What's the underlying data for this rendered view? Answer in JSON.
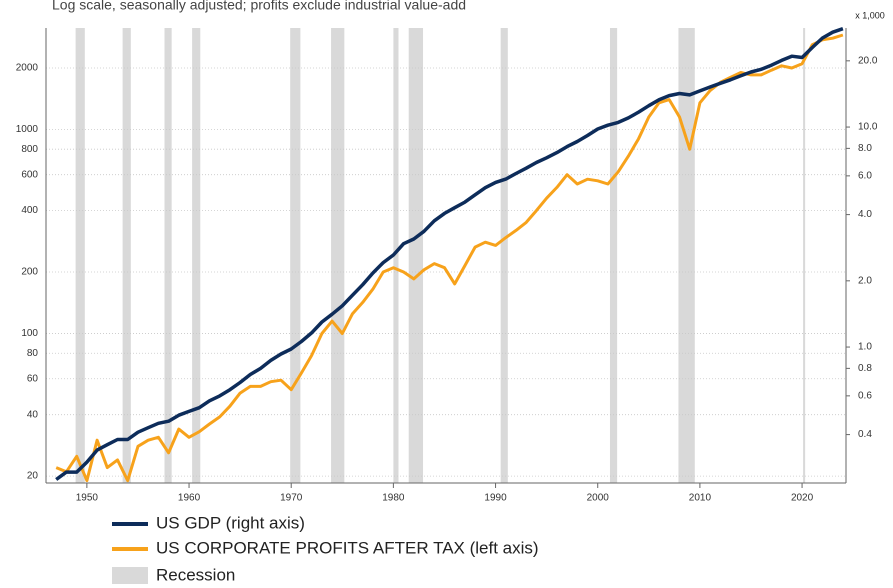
{
  "chart_data": {
    "type": "line",
    "subtitle": "Log scale, seasonally adjusted; profits exclude industrial value-add",
    "y2_unit_label": "x 1,000",
    "log_scale": true,
    "grid": true,
    "xlim": [
      1946,
      2024.3
    ],
    "xticks": [
      1950,
      1960,
      1970,
      1980,
      1990,
      2000,
      2010,
      2020
    ],
    "ylim": [
      18.5,
      3140
    ],
    "yticks": [
      20,
      40,
      60,
      80,
      100,
      200,
      400,
      600,
      800,
      1000,
      2000
    ],
    "y2lim": [
      0.241,
      28.2
    ],
    "y2ticks": [
      {
        "value": 0.4,
        "label": "0.4"
      },
      {
        "value": 0.6,
        "label": "0.6"
      },
      {
        "value": 0.8,
        "label": "0.8"
      },
      {
        "value": 1,
        "label": "1.0"
      },
      {
        "value": 2,
        "label": "2.0"
      },
      {
        "value": 4,
        "label": "4.0"
      },
      {
        "value": 6,
        "label": "6.0"
      },
      {
        "value": 8,
        "label": "8.0"
      },
      {
        "value": 10,
        "label": "10.0"
      },
      {
        "value": 20,
        "label": "20.0"
      }
    ],
    "recessions": {
      "name": "Recession",
      "color": "#d9d9d9",
      "periods": [
        [
          1948.9,
          1949.8
        ],
        [
          1953.5,
          1954.3
        ],
        [
          1957.6,
          1958.3
        ],
        [
          1960.3,
          1961.1
        ],
        [
          1969.9,
          1970.9
        ],
        [
          1973.9,
          1975.2
        ],
        [
          1980.0,
          1980.5
        ],
        [
          1981.5,
          1982.9
        ],
        [
          1990.5,
          1991.2
        ],
        [
          2001.2,
          2001.9
        ],
        [
          2007.9,
          2009.5
        ],
        [
          2020.1,
          2020.3
        ]
      ]
    },
    "x": [
      1947,
      1948,
      1949,
      1950,
      1951,
      1952,
      1953,
      1954,
      1955,
      1956,
      1957,
      1958,
      1959,
      1960,
      1961,
      1962,
      1963,
      1964,
      1965,
      1966,
      1967,
      1968,
      1969,
      1970,
      1971,
      1972,
      1973,
      1974,
      1975,
      1976,
      1977,
      1978,
      1979,
      1980,
      1981,
      1982,
      1983,
      1984,
      1985,
      1986,
      1987,
      1988,
      1989,
      1990,
      1991,
      1992,
      1993,
      1994,
      1995,
      1996,
      1997,
      1998,
      1999,
      2000,
      2001,
      2002,
      2003,
      2004,
      2005,
      2006,
      2007,
      2008,
      2009,
      2010,
      2011,
      2012,
      2013,
      2014,
      2015,
      2016,
      2017,
      2018,
      2019,
      2020,
      2021,
      2022,
      2023,
      2024
    ],
    "series": [
      {
        "name": "US GDP (right axis)",
        "color": "#0d2c5a",
        "axis": "y2",
        "values": [
          0.25,
          0.27,
          0.27,
          0.3,
          0.34,
          0.36,
          0.38,
          0.38,
          0.41,
          0.43,
          0.45,
          0.46,
          0.49,
          0.51,
          0.53,
          0.57,
          0.6,
          0.64,
          0.69,
          0.75,
          0.8,
          0.87,
          0.93,
          0.98,
          1.06,
          1.16,
          1.3,
          1.41,
          1.54,
          1.72,
          1.92,
          2.17,
          2.42,
          2.62,
          2.95,
          3.1,
          3.36,
          3.75,
          4.05,
          4.3,
          4.56,
          4.92,
          5.3,
          5.6,
          5.8,
          6.15,
          6.5,
          6.9,
          7.25,
          7.65,
          8.15,
          8.6,
          9.15,
          9.8,
          10.2,
          10.5,
          11.0,
          11.7,
          12.5,
          13.3,
          13.9,
          14.2,
          14.0,
          14.6,
          15.2,
          15.8,
          16.4,
          17.1,
          17.8,
          18.3,
          19.1,
          20.1,
          21.0,
          20.7,
          23.0,
          25.4,
          27.0,
          28.0
        ]
      },
      {
        "name": "US CORPORATE PROFITS AFTER TAX (left axis)",
        "color": "#f7a21b",
        "axis": "y",
        "values": [
          22,
          21,
          25,
          19,
          30,
          22,
          24,
          19,
          28,
          30,
          31,
          26,
          34,
          31,
          33,
          36,
          39,
          44,
          51,
          55,
          55,
          58,
          59,
          53,
          64,
          78,
          100,
          115,
          100,
          125,
          142,
          165,
          200,
          210,
          200,
          185,
          205,
          220,
          210,
          175,
          215,
          265,
          280,
          270,
          295,
          320,
          350,
          400,
          460,
          520,
          600,
          540,
          570,
          560,
          540,
          620,
          740,
          900,
          1150,
          1350,
          1400,
          1150,
          800,
          1350,
          1550,
          1700,
          1800,
          1900,
          1850,
          1850,
          1950,
          2050,
          2000,
          2100,
          2600,
          2750,
          2800,
          2900
        ]
      }
    ]
  }
}
